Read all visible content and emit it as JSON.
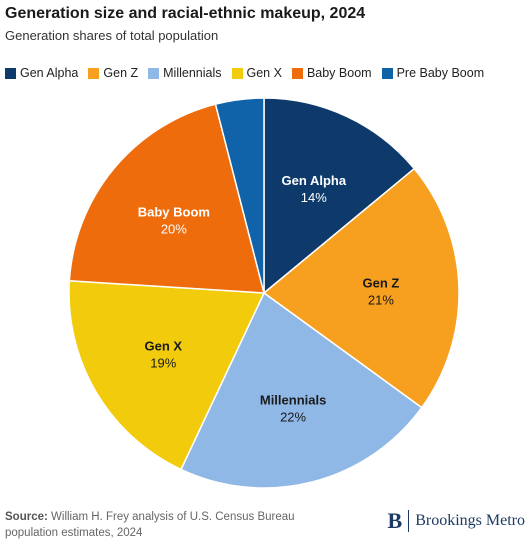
{
  "header": {
    "title": "Generation size and racial-ethnic makeup, 2024",
    "subtitle": "Generation shares of total population"
  },
  "chart_data": {
    "type": "pie",
    "title": "Generation size and racial-ethnic makeup, 2024",
    "subtitle": "Generation shares of total population",
    "legend_position": "top",
    "slices": [
      {
        "name": "Gen Alpha",
        "value": 14,
        "label": "14%",
        "color": "#0d3a6b",
        "show_label": true
      },
      {
        "name": "Gen Z",
        "value": 21,
        "label": "21%",
        "color": "#f79f1f",
        "show_label": true
      },
      {
        "name": "Millennials",
        "value": 22,
        "label": "22%",
        "color": "#8fb8e6",
        "show_label": true
      },
      {
        "name": "Gen X",
        "value": 19,
        "label": "19%",
        "color": "#f2cc0c",
        "show_label": true
      },
      {
        "name": "Baby Boom",
        "value": 20,
        "label": "20%",
        "color": "#ee6c0c",
        "show_label": true
      },
      {
        "name": "Pre Baby Boom",
        "value": 4,
        "label": "",
        "color": "#1063a8",
        "show_label": false
      }
    ]
  },
  "footer": {
    "source_label": "Source:",
    "source_text": "William H. Frey analysis of U.S. Census Bureau population estimates, 2024",
    "brand_mark": "B",
    "brand_name": "Brookings Metro"
  }
}
